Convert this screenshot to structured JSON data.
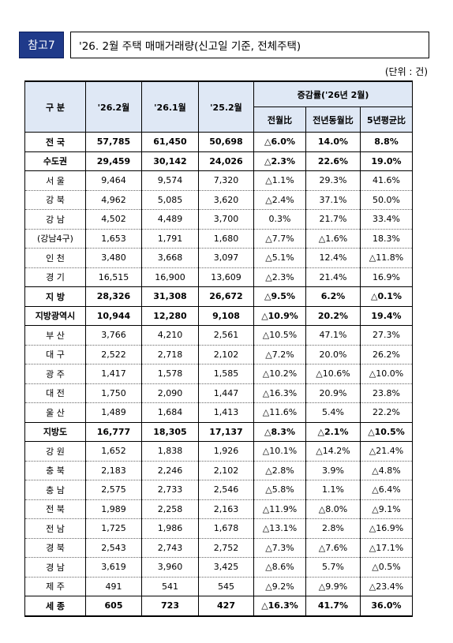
{
  "header": {
    "tag": "참고7",
    "title": "'26. 2월 주택 매매거래량(신고일 기준, 전체주택)"
  },
  "unit": "(단위 : 건)",
  "columns": {
    "region": "구 분",
    "c1": "'26.2월",
    "c2": "'26.1월",
    "c3": "'25.2월",
    "change_group": "증감률('26년 2월)",
    "ch1": "전월比",
    "ch2": "전년동월比",
    "ch3": "5년평균比"
  },
  "rows": [
    {
      "region": "전 국",
      "c1": "57,785",
      "c2": "61,450",
      "c3": "50,698",
      "ch1": "△6.0%",
      "ch2": "14.0%",
      "ch3": "8.8%",
      "bold": true,
      "solid": true
    },
    {
      "region": "수도권",
      "c1": "29,459",
      "c2": "30,142",
      "c3": "24,026",
      "ch1": "△2.3%",
      "ch2": "22.6%",
      "ch3": "19.0%",
      "bold": true,
      "solid": true
    },
    {
      "region": "서 울",
      "c1": "9,464",
      "c2": "9,574",
      "c3": "7,320",
      "ch1": "△1.1%",
      "ch2": "29.3%",
      "ch3": "41.6%"
    },
    {
      "region": "강 북",
      "c1": "4,962",
      "c2": "5,085",
      "c3": "3,620",
      "ch1": "△2.4%",
      "ch2": "37.1%",
      "ch3": "50.0%"
    },
    {
      "region": "강 남",
      "c1": "4,502",
      "c2": "4,489",
      "c3": "3,700",
      "ch1": "0.3%",
      "ch2": "21.7%",
      "ch3": "33.4%"
    },
    {
      "region": "(강남4구)",
      "c1": "1,653",
      "c2": "1,791",
      "c3": "1,680",
      "ch1": "△7.7%",
      "ch2": "△1.6%",
      "ch3": "18.3%"
    },
    {
      "region": "인 천",
      "c1": "3,480",
      "c2": "3,668",
      "c3": "3,097",
      "ch1": "△5.1%",
      "ch2": "12.4%",
      "ch3": "△11.8%"
    },
    {
      "region": "경 기",
      "c1": "16,515",
      "c2": "16,900",
      "c3": "13,609",
      "ch1": "△2.3%",
      "ch2": "21.4%",
      "ch3": "16.9%",
      "solid": true
    },
    {
      "region": "지 방",
      "c1": "28,326",
      "c2": "31,308",
      "c3": "26,672",
      "ch1": "△9.5%",
      "ch2": "6.2%",
      "ch3": "△0.1%",
      "bold": true,
      "solid": true
    },
    {
      "region": "지방광역시",
      "c1": "10,944",
      "c2": "12,280",
      "c3": "9,108",
      "ch1": "△10.9%",
      "ch2": "20.2%",
      "ch3": "19.4%",
      "bold": true,
      "solid": true
    },
    {
      "region": "부 산",
      "c1": "3,766",
      "c2": "4,210",
      "c3": "2,561",
      "ch1": "△10.5%",
      "ch2": "47.1%",
      "ch3": "27.3%"
    },
    {
      "region": "대 구",
      "c1": "2,522",
      "c2": "2,718",
      "c3": "2,102",
      "ch1": "△7.2%",
      "ch2": "20.0%",
      "ch3": "26.2%"
    },
    {
      "region": "광 주",
      "c1": "1,417",
      "c2": "1,578",
      "c3": "1,585",
      "ch1": "△10.2%",
      "ch2": "△10.6%",
      "ch3": "△10.0%"
    },
    {
      "region": "대 전",
      "c1": "1,750",
      "c2": "2,090",
      "c3": "1,447",
      "ch1": "△16.3%",
      "ch2": "20.9%",
      "ch3": "23.8%"
    },
    {
      "region": "울 산",
      "c1": "1,489",
      "c2": "1,684",
      "c3": "1,413",
      "ch1": "△11.6%",
      "ch2": "5.4%",
      "ch3": "22.2%",
      "solid": true
    },
    {
      "region": "지방도",
      "c1": "16,777",
      "c2": "18,305",
      "c3": "17,137",
      "ch1": "△8.3%",
      "ch2": "△2.1%",
      "ch3": "△10.5%",
      "bold": true,
      "solid": true
    },
    {
      "region": "강 원",
      "c1": "1,652",
      "c2": "1,838",
      "c3": "1,926",
      "ch1": "△10.1%",
      "ch2": "△14.2%",
      "ch3": "△21.4%"
    },
    {
      "region": "충 북",
      "c1": "2,183",
      "c2": "2,246",
      "c3": "2,102",
      "ch1": "△2.8%",
      "ch2": "3.9%",
      "ch3": "△4.8%"
    },
    {
      "region": "충 남",
      "c1": "2,575",
      "c2": "2,733",
      "c3": "2,546",
      "ch1": "△5.8%",
      "ch2": "1.1%",
      "ch3": "△6.4%"
    },
    {
      "region": "전 북",
      "c1": "1,989",
      "c2": "2,258",
      "c3": "2,163",
      "ch1": "△11.9%",
      "ch2": "△8.0%",
      "ch3": "△9.1%"
    },
    {
      "region": "전 남",
      "c1": "1,725",
      "c2": "1,986",
      "c3": "1,678",
      "ch1": "△13.1%",
      "ch2": "2.8%",
      "ch3": "△16.9%"
    },
    {
      "region": "경 북",
      "c1": "2,543",
      "c2": "2,743",
      "c3": "2,752",
      "ch1": "△7.3%",
      "ch2": "△7.6%",
      "ch3": "△17.1%"
    },
    {
      "region": "경 남",
      "c1": "3,619",
      "c2": "3,960",
      "c3": "3,425",
      "ch1": "△8.6%",
      "ch2": "5.7%",
      "ch3": "△0.5%"
    },
    {
      "region": "제 주",
      "c1": "491",
      "c2": "541",
      "c3": "545",
      "ch1": "△9.2%",
      "ch2": "△9.9%",
      "ch3": "△23.4%",
      "solid": true
    },
    {
      "region": "세 종",
      "c1": "605",
      "c2": "723",
      "c3": "427",
      "ch1": "△16.3%",
      "ch2": "41.7%",
      "ch3": "36.0%",
      "bold": true,
      "last": true
    }
  ]
}
